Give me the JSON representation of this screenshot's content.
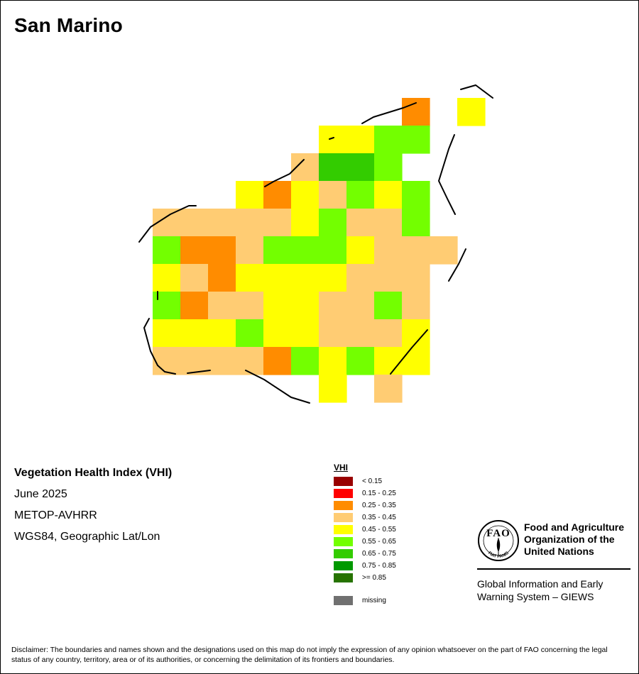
{
  "title": "San Marino",
  "info": {
    "index_name": "Vegetation Health Index (VHI)",
    "period": "June 2025",
    "sensor": "METOP-AVHRR",
    "projection": "WGS84, Geographic Lat/Lon"
  },
  "legend": {
    "title": "VHI",
    "classes": [
      {
        "label": "< 0.15",
        "color": "#990000"
      },
      {
        "label": "0.15 - 0.25",
        "color": "#ff0000"
      },
      {
        "label": "0.25 - 0.35",
        "color": "#ff8c00"
      },
      {
        "label": "0.35 - 0.45",
        "color": "#ffcc73"
      },
      {
        "label": "0.45 - 0.55",
        "color": "#ffff00"
      },
      {
        "label": "0.55 - 0.65",
        "color": "#73ff00"
      },
      {
        "label": "0.65 - 0.75",
        "color": "#33cc00"
      },
      {
        "label": "0.75 - 0.85",
        "color": "#009900"
      },
      {
        "label": ">= 0.85",
        "color": "#267300"
      }
    ],
    "missing": {
      "label": "missing",
      "color": "#707070"
    }
  },
  "grid": {
    "rows": [
      ".........2.4",
      "......4455.",
      ".....3665..",
      "...4243545.",
      "3333345335",
      "52235554333",
      "4324444333",
      "5233443353",
      "4445443334",
      "3333254544",
      "......4.3"
    ]
  },
  "logo": {
    "letters": "FAO",
    "motto": "FIAT PANIS",
    "org_lines": [
      "Food and Agriculture",
      "Organization of the",
      "United Nations"
    ],
    "system_lines": [
      "Global Information and Early",
      "Warning System – GIEWS"
    ]
  },
  "disclaimer": "Disclaimer: The boundaries and names shown and the designations used on this map do not imply the expression of any opinion whatsoever on the part of FAO concerning the legal status of any country, territory, area or of its authorities, or concerning the delimitation of its frontiers and boundaries."
}
